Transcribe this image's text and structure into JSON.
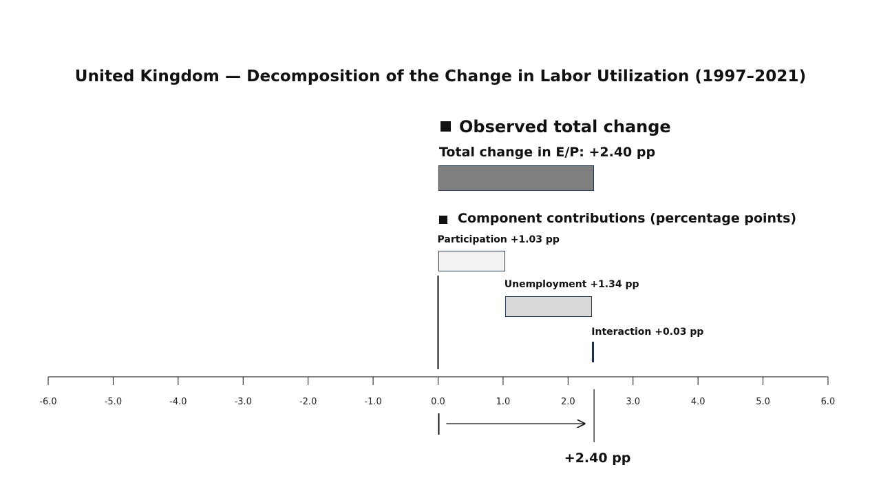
{
  "title": "United Kingdom — Decomposition of the Change in Labor Utilization (1997–2021)",
  "chart_data": {
    "type": "bar",
    "orientation": "horizontal",
    "xlim": [
      -6.0,
      6.0
    ],
    "xticks": [
      "-6.0",
      "-5.0",
      "-4.0",
      "-3.0",
      "-2.0",
      "-1.0",
      "0.0",
      "1.0",
      "2.0",
      "3.0",
      "4.0",
      "5.0",
      "6.0"
    ],
    "total": {
      "section_heading": "Observed total change",
      "label": "Total change in E/P: +2.40 pp",
      "start": 0,
      "value": 2.4,
      "color": "#7f7f7f"
    },
    "components_heading": "Component contributions (percentage points)",
    "components": [
      {
        "name": "Participation",
        "label": "Participation +1.03 pp",
        "start": 0,
        "value": 1.03,
        "color": "#f2f2f2"
      },
      {
        "name": "Unemployment",
        "label": "Unemployment +1.34 pp",
        "start": 1.03,
        "value": 1.34,
        "color": "#d9d9d9"
      },
      {
        "name": "Interaction",
        "label": "Interaction +0.03 pp",
        "start": 2.37,
        "value": 0.03,
        "color": "#1f2a44"
      }
    ],
    "bottom_annotation": "+2.40 pp"
  }
}
